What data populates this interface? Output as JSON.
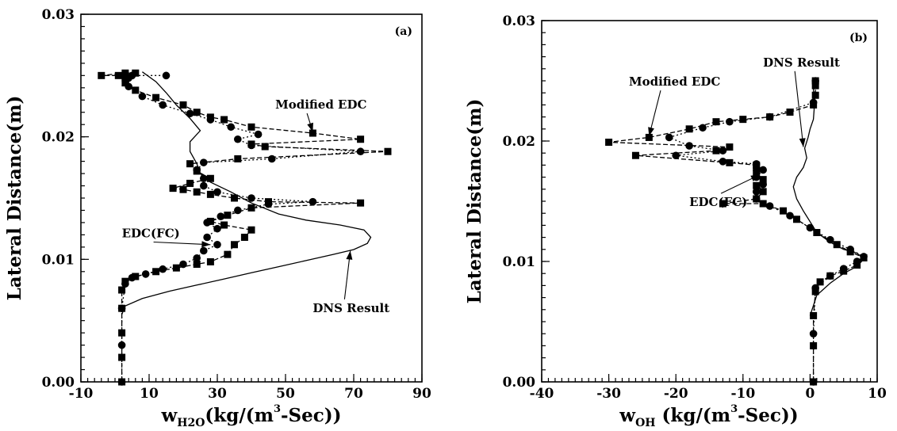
{
  "chart_data": [
    {
      "type": "line",
      "panel_label": "(a)",
      "xlim": [
        -10,
        90
      ],
      "ylim": [
        0.0,
        0.03
      ],
      "x_major_ticks": [
        -10,
        10,
        30,
        50,
        70,
        90
      ],
      "x_tick_labels": [
        "-10",
        "10",
        "30",
        "50",
        "70",
        "90"
      ],
      "y_major_ticks": [
        0.0,
        0.01,
        0.02,
        0.03
      ],
      "y_tick_labels": [
        "0.00",
        "0.01",
        "0.02",
        "0.03"
      ],
      "ylabel": "Lateral Distance(m)",
      "xlabel": {
        "prefix": "w",
        "sub": "H2O",
        "mid": "(kg/(m",
        "sup": "3",
        "suffix": "-Sec))"
      },
      "series": [
        {
          "name": "DNS Result",
          "style": "solid-line",
          "points": [
            [
              2,
              0.0055
            ],
            [
              3,
              0.0062
            ],
            [
              8,
              0.0068
            ],
            [
              16,
              0.0074
            ],
            [
              24,
              0.0079
            ],
            [
              32,
              0.0084
            ],
            [
              40,
              0.0089
            ],
            [
              48,
              0.0094
            ],
            [
              56,
              0.0099
            ],
            [
              64,
              0.0104
            ],
            [
              70,
              0.0108
            ],
            [
              74,
              0.0113
            ],
            [
              75,
              0.0118
            ],
            [
              73,
              0.0124
            ],
            [
              66,
              0.0128
            ],
            [
              56,
              0.0132
            ],
            [
              48,
              0.0137
            ],
            [
              40,
              0.0146
            ],
            [
              34,
              0.0155
            ],
            [
              28,
              0.0163
            ],
            [
              25,
              0.017
            ],
            [
              24,
              0.0178
            ],
            [
              22,
              0.0188
            ],
            [
              22,
              0.0196
            ],
            [
              25,
              0.0205
            ],
            [
              22,
              0.0215
            ],
            [
              18,
              0.0226
            ],
            [
              15,
              0.0236
            ],
            [
              12,
              0.0245
            ],
            [
              8,
              0.0253
            ]
          ]
        },
        {
          "name": "Modified EDC",
          "style": "dashed-square",
          "points": [
            [
              2,
              0.0
            ],
            [
              2,
              0.002
            ],
            [
              2,
              0.004
            ],
            [
              2,
              0.006
            ],
            [
              2,
              0.0075
            ],
            [
              3,
              0.0082
            ],
            [
              6,
              0.0086
            ],
            [
              12,
              0.009
            ],
            [
              18,
              0.0093
            ],
            [
              24,
              0.0096
            ],
            [
              28,
              0.0098
            ],
            [
              33,
              0.0104
            ],
            [
              35,
              0.0112
            ],
            [
              38,
              0.0118
            ],
            [
              40,
              0.0124
            ],
            [
              32,
              0.0128
            ],
            [
              28,
              0.0131
            ],
            [
              33,
              0.0136
            ],
            [
              40,
              0.0142
            ],
            [
              72,
              0.0146
            ],
            [
              45,
              0.0147
            ],
            [
              35,
              0.015
            ],
            [
              28,
              0.0153
            ],
            [
              24,
              0.0155
            ],
            [
              20,
              0.0157
            ],
            [
              17,
              0.0158
            ],
            [
              22,
              0.0162
            ],
            [
              28,
              0.0166
            ],
            [
              24,
              0.0172
            ],
            [
              22,
              0.0178
            ],
            [
              36,
              0.0182
            ],
            [
              80,
              0.0188
            ],
            [
              44,
              0.0192
            ],
            [
              40,
              0.0194
            ],
            [
              72,
              0.0198
            ],
            [
              58,
              0.0203
            ],
            [
              40,
              0.0208
            ],
            [
              32,
              0.0214
            ],
            [
              28,
              0.0216
            ],
            [
              24,
              0.022
            ],
            [
              20,
              0.0226
            ],
            [
              12,
              0.0232
            ],
            [
              6,
              0.0238
            ],
            [
              3,
              0.0244
            ],
            [
              3,
              0.0248
            ],
            [
              1,
              0.025
            ],
            [
              -4,
              0.025
            ],
            [
              3,
              0.0252
            ],
            [
              6,
              0.0252
            ]
          ]
        },
        {
          "name": "EDC(FC)",
          "style": "dotted-circle",
          "points": [
            [
              2,
              0.0
            ],
            [
              2,
              0.003
            ],
            [
              2,
              0.006
            ],
            [
              3,
              0.008
            ],
            [
              5,
              0.0085
            ],
            [
              9,
              0.0088
            ],
            [
              14,
              0.0092
            ],
            [
              20,
              0.0096
            ],
            [
              24,
              0.0101
            ],
            [
              26,
              0.0107
            ],
            [
              30,
              0.0112
            ],
            [
              27,
              0.0118
            ],
            [
              30,
              0.0125
            ],
            [
              27,
              0.013
            ],
            [
              31,
              0.0135
            ],
            [
              36,
              0.014
            ],
            [
              45,
              0.0145
            ],
            [
              58,
              0.0147
            ],
            [
              40,
              0.015
            ],
            [
              30,
              0.0155
            ],
            [
              26,
              0.016
            ],
            [
              26,
              0.0166
            ],
            [
              24,
              0.0173
            ],
            [
              26,
              0.0179
            ],
            [
              46,
              0.0182
            ],
            [
              72,
              0.0188
            ],
            [
              40,
              0.0193
            ],
            [
              36,
              0.0198
            ],
            [
              42,
              0.0202
            ],
            [
              34,
              0.0208
            ],
            [
              28,
              0.0214
            ],
            [
              22,
              0.0219
            ],
            [
              14,
              0.0226
            ],
            [
              8,
              0.0233
            ],
            [
              4,
              0.0241
            ],
            [
              4,
              0.0248
            ],
            [
              5,
              0.025
            ],
            [
              15,
              0.025
            ]
          ]
        }
      ],
      "annotations": [
        {
          "text": "Modified EDC",
          "x": 47,
          "y": 0.0223,
          "arrow_to": [
            58,
            0.0204
          ]
        },
        {
          "text": "EDC(FC)",
          "x": 2,
          "y": 0.0118,
          "arrow_to": [
            28,
            0.0112
          ]
        },
        {
          "text": "DNS Result",
          "x": 58,
          "y": 0.0057,
          "arrow_to": [
            69,
            0.0107
          ]
        }
      ]
    },
    {
      "type": "line",
      "panel_label": "(b)",
      "xlim": [
        -40,
        10
      ],
      "ylim": [
        0.0,
        0.03
      ],
      "x_major_ticks": [
        -40,
        -30,
        -20,
        -10,
        0,
        10
      ],
      "x_tick_labels": [
        "-40",
        "-30",
        "-20",
        "-10",
        "0",
        "10"
      ],
      "y_major_ticks": [
        0.0,
        0.01,
        0.02,
        0.03
      ],
      "y_tick_labels": [
        "0.00",
        "0.01",
        "0.02",
        "0.03"
      ],
      "ylabel": "Lateral Distance(m)",
      "xlabel": {
        "prefix": "w",
        "sub": "OH",
        "mid": " (kg/(m",
        "sup": "3",
        "suffix": "-Sec))"
      },
      "series": [
        {
          "name": "DNS Result",
          "style": "solid-line",
          "points": [
            [
              0,
              0.0055
            ],
            [
              1,
              0.0072
            ],
            [
              3,
              0.0082
            ],
            [
              5,
              0.009
            ],
            [
              7,
              0.0096
            ],
            [
              8,
              0.0102
            ],
            [
              7,
              0.0107
            ],
            [
              5,
              0.011
            ],
            [
              3,
              0.0116
            ],
            [
              1,
              0.0124
            ],
            [
              0,
              0.0133
            ],
            [
              -1,
              0.0142
            ],
            [
              -2,
              0.0152
            ],
            [
              -2.5,
              0.0162
            ],
            [
              -2,
              0.017
            ],
            [
              -1,
              0.0178
            ],
            [
              -0.5,
              0.0186
            ],
            [
              -0.8,
              0.0194
            ],
            [
              -0.3,
              0.0203
            ],
            [
              0,
              0.021
            ],
            [
              0.5,
              0.0218
            ],
            [
              0.6,
              0.0226
            ],
            [
              0.6,
              0.0234
            ],
            [
              0.5,
              0.0244
            ],
            [
              0.5,
              0.025
            ]
          ]
        },
        {
          "name": "Modified EDC",
          "style": "dashed-square",
          "points": [
            [
              0.5,
              0.0
            ],
            [
              0.5,
              0.003
            ],
            [
              0.5,
              0.0055
            ],
            [
              0.8,
              0.0075
            ],
            [
              1.5,
              0.0083
            ],
            [
              3,
              0.0088
            ],
            [
              5,
              0.0092
            ],
            [
              7,
              0.0097
            ],
            [
              8,
              0.0103
            ],
            [
              6,
              0.0108
            ],
            [
              4,
              0.0114
            ],
            [
              1,
              0.0124
            ],
            [
              -2,
              0.0135
            ],
            [
              -4,
              0.0142
            ],
            [
              -7,
              0.0148
            ],
            [
              -13,
              0.0148
            ],
            [
              -8,
              0.0152
            ],
            [
              -7,
              0.0158
            ],
            [
              -8,
              0.0163
            ],
            [
              -7,
              0.0168
            ],
            [
              -8,
              0.0173
            ],
            [
              -8,
              0.0178
            ],
            [
              -8,
              0.018
            ],
            [
              -12,
              0.0182
            ],
            [
              -26,
              0.0188
            ],
            [
              -14,
              0.0192
            ],
            [
              -12,
              0.0195
            ],
            [
              -30,
              0.0199
            ],
            [
              -24,
              0.0203
            ],
            [
              -18,
              0.021
            ],
            [
              -14,
              0.0216
            ],
            [
              -10,
              0.0218
            ],
            [
              -6,
              0.022
            ],
            [
              -3,
              0.0224
            ],
            [
              0.5,
              0.023
            ],
            [
              0.8,
              0.0238
            ],
            [
              0.8,
              0.0246
            ],
            [
              0.8,
              0.025
            ]
          ]
        },
        {
          "name": "EDC(FC)",
          "style": "dotted-circle",
          "points": [
            [
              0.5,
              0.0
            ],
            [
              0.5,
              0.004
            ],
            [
              0.8,
              0.0078
            ],
            [
              3,
              0.0088
            ],
            [
              5,
              0.0094
            ],
            [
              7,
              0.01
            ],
            [
              8,
              0.0104
            ],
            [
              6,
              0.011
            ],
            [
              3,
              0.0118
            ],
            [
              0,
              0.0128
            ],
            [
              -3,
              0.0138
            ],
            [
              -6,
              0.0146
            ],
            [
              -8,
              0.0152
            ],
            [
              -8,
              0.0158
            ],
            [
              -7,
              0.0164
            ],
            [
              -8,
              0.017
            ],
            [
              -7,
              0.0176
            ],
            [
              -8,
              0.0181
            ],
            [
              -13,
              0.0183
            ],
            [
              -20,
              0.0188
            ],
            [
              -13,
              0.0192
            ],
            [
              -18,
              0.0196
            ],
            [
              -21,
              0.0203
            ],
            [
              -16,
              0.0211
            ],
            [
              -12,
              0.0216
            ],
            [
              -6,
              0.022
            ],
            [
              0.5,
              0.0232
            ],
            [
              0.8,
              0.025
            ]
          ]
        }
      ],
      "annotations": [
        {
          "text": "Modified EDC",
          "x": -27,
          "y": 0.0246,
          "arrow_to": [
            -24,
            0.0204
          ]
        },
        {
          "text": "DNS Result",
          "x": -7,
          "y": 0.0262,
          "arrow_to": [
            -1,
            0.0195
          ]
        },
        {
          "text": "EDC(FC)",
          "x": -18,
          "y": 0.0146,
          "arrow_to": [
            -7.5,
            0.0172
          ]
        }
      ]
    }
  ]
}
